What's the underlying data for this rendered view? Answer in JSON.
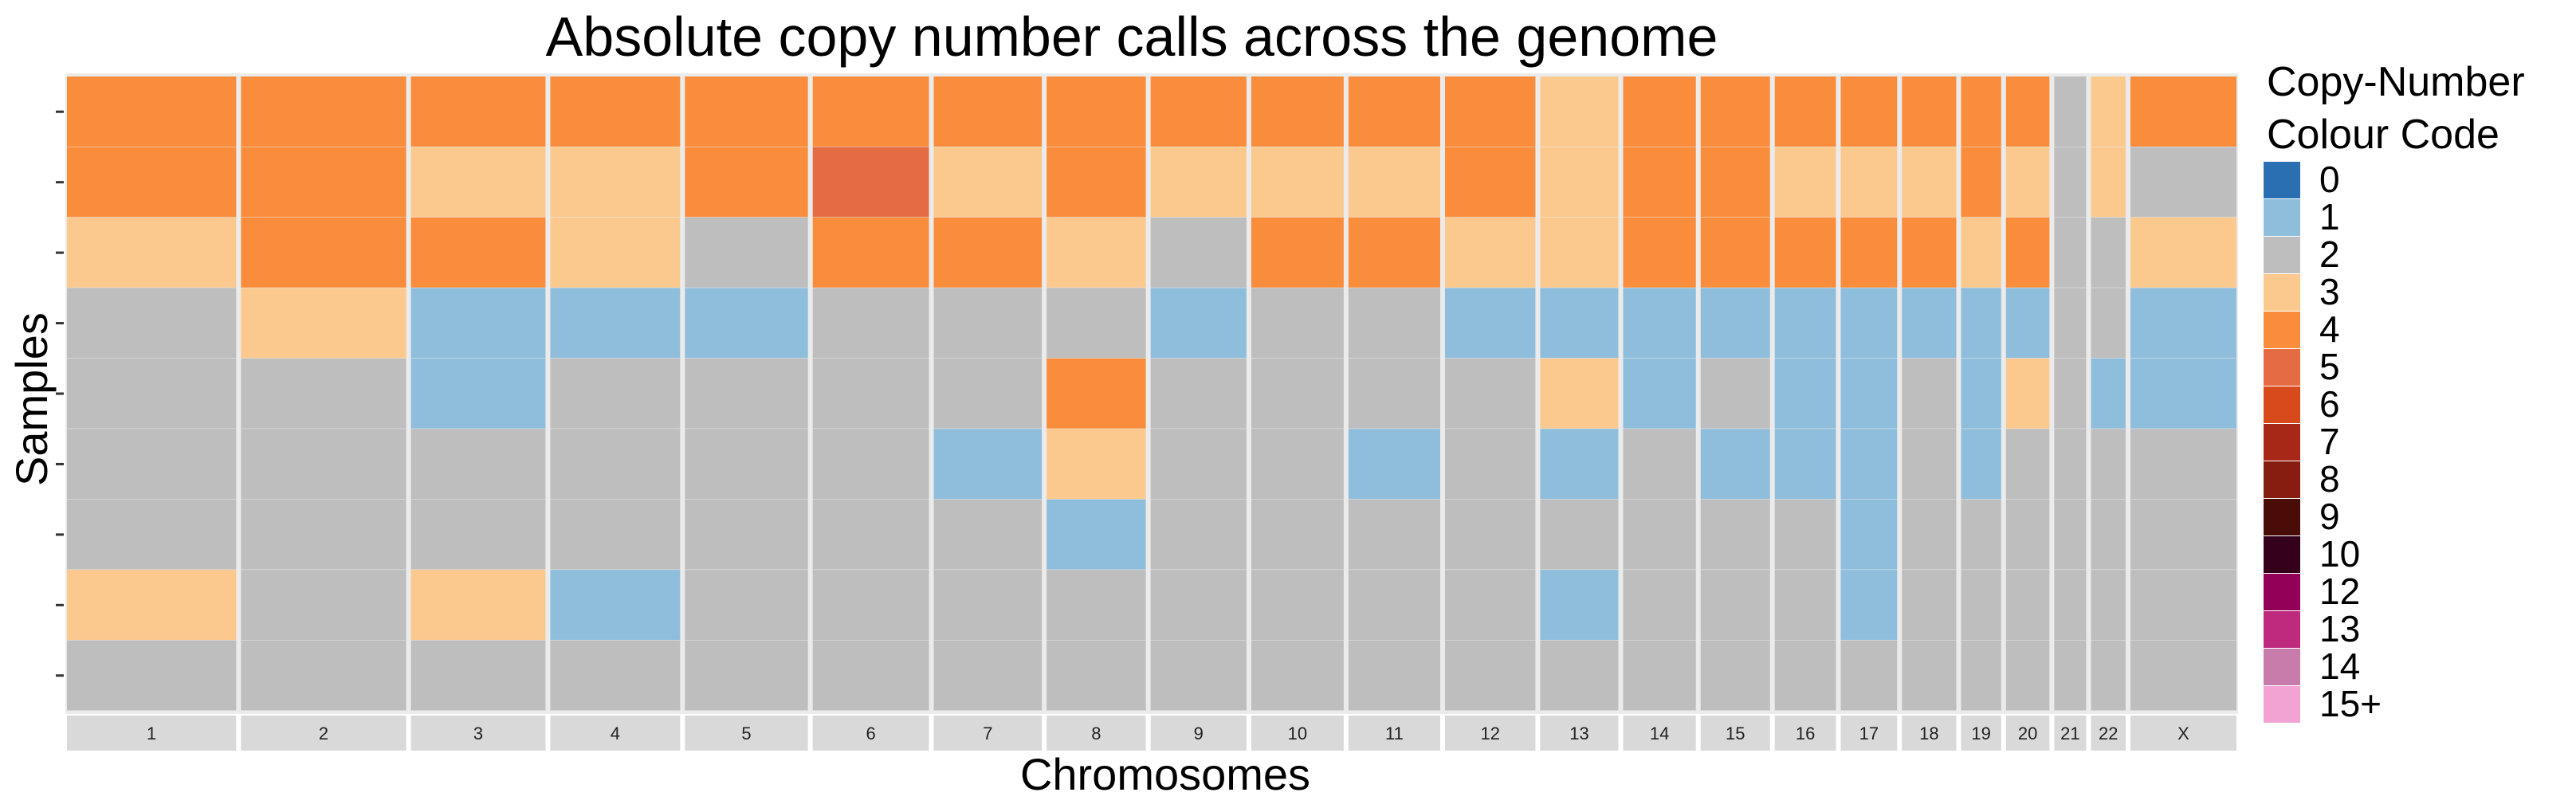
{
  "chart_data": {
    "type": "heatmap",
    "title": "Absolute copy number calls across the genome",
    "xlabel": "Chromosomes",
    "ylabel": "Samples",
    "legend": {
      "title_line1": "Copy-Number",
      "title_line2": "Colour Code",
      "placement": "right",
      "entries": [
        {
          "label": "0",
          "color": "#2B6FB3"
        },
        {
          "label": "1",
          "color": "#8FBEDD"
        },
        {
          "label": "2",
          "color": "#BEBEBE"
        },
        {
          "label": "3",
          "color": "#FBC98E"
        },
        {
          "label": "4",
          "color": "#F98D3C"
        },
        {
          "label": "5",
          "color": "#E56B43"
        },
        {
          "label": "6",
          "color": "#D84A1B"
        },
        {
          "label": "7",
          "color": "#A82818"
        },
        {
          "label": "8",
          "color": "#861D10"
        },
        {
          "label": "9",
          "color": "#4A0C06"
        },
        {
          "label": "10",
          "color": "#34001A"
        },
        {
          "label": "12",
          "color": "#930058"
        },
        {
          "label": "13",
          "color": "#BD2A7E"
        },
        {
          "label": "14",
          "color": "#C77CAB"
        },
        {
          "label": "15+",
          "color": "#F2A3D4"
        }
      ]
    },
    "chromosomes": [
      "1",
      "2",
      "3",
      "4",
      "5",
      "6",
      "7",
      "8",
      "9",
      "10",
      "11",
      "12",
      "13",
      "14",
      "15",
      "16",
      "17",
      "18",
      "19",
      "20",
      "21",
      "22",
      "X"
    ],
    "chromosome_relative_length": [
      249,
      243,
      198,
      191,
      181,
      171,
      159,
      146,
      141,
      136,
      135,
      133,
      115,
      107,
      102,
      90,
      83,
      80,
      59,
      64,
      47,
      51,
      156
    ],
    "samples": 9,
    "calls_by_sample": [
      [
        4,
        4,
        4,
        4,
        4,
        4,
        4,
        4,
        4,
        4,
        4,
        4,
        3,
        4,
        4,
        4,
        4,
        4,
        4,
        4,
        2,
        3,
        4
      ],
      [
        4,
        4,
        3,
        3,
        4,
        5,
        3,
        4,
        3,
        3,
        3,
        4,
        3,
        4,
        4,
        3,
        3,
        3,
        4,
        3,
        2,
        3,
        2
      ],
      [
        3,
        4,
        4,
        3,
        2,
        4,
        4,
        3,
        2,
        4,
        4,
        3,
        3,
        4,
        4,
        4,
        4,
        4,
        3,
        4,
        2,
        2,
        3
      ],
      [
        2,
        3,
        1,
        1,
        1,
        2,
        2,
        2,
        1,
        2,
        2,
        1,
        1,
        1,
        1,
        1,
        1,
        1,
        1,
        1,
        2,
        2,
        1
      ],
      [
        2,
        2,
        1,
        2,
        2,
        2,
        2,
        4,
        2,
        2,
        2,
        2,
        3,
        1,
        2,
        1,
        1,
        2,
        1,
        3,
        2,
        1,
        1
      ],
      [
        2,
        2,
        2,
        2,
        2,
        2,
        1,
        3,
        2,
        2,
        1,
        2,
        1,
        2,
        1,
        1,
        1,
        2,
        1,
        2,
        2,
        2,
        2
      ],
      [
        2,
        2,
        2,
        2,
        2,
        2,
        2,
        1,
        2,
        2,
        2,
        2,
        2,
        2,
        2,
        2,
        1,
        2,
        2,
        2,
        2,
        2,
        2
      ],
      [
        3,
        2,
        3,
        1,
        2,
        2,
        2,
        2,
        2,
        2,
        2,
        2,
        1,
        2,
        2,
        2,
        1,
        2,
        2,
        2,
        2,
        2,
        2
      ],
      [
        2,
        2,
        2,
        2,
        2,
        2,
        2,
        2,
        2,
        2,
        2,
        2,
        2,
        2,
        2,
        2,
        2,
        2,
        2,
        2,
        2,
        2,
        2
      ]
    ],
    "grid": false
  }
}
